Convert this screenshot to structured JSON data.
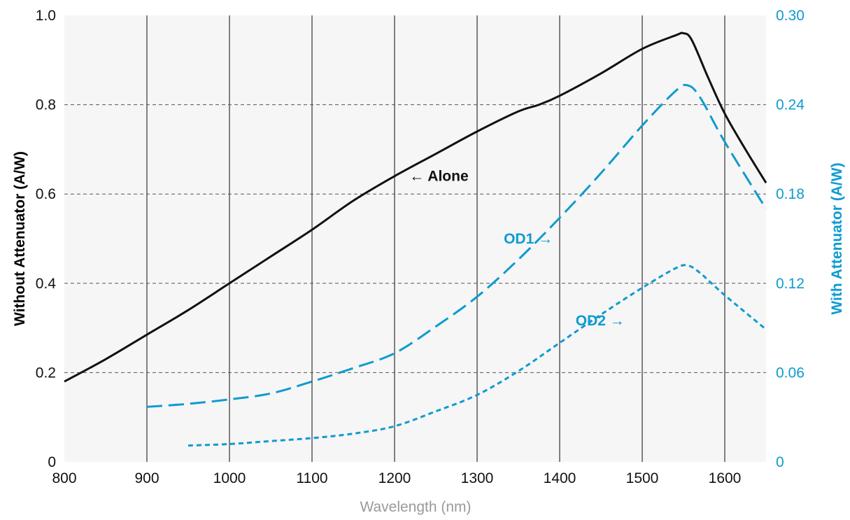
{
  "colors": {
    "primary": "#111111",
    "secondary": "#0e9bd0",
    "xlabel": "#9a9a9a",
    "plot_bg": "#f6f6f6"
  },
  "chart_data": {
    "type": "line",
    "title": "",
    "xlabel": "Wavelength (nm)",
    "ylabel_left": "Without Attenuator (A/W)",
    "ylabel_right": "With Attenuator (A/W)",
    "xlim": [
      800,
      1650
    ],
    "ylim_left": [
      0,
      1.0
    ],
    "ylim_right": [
      0,
      0.3
    ],
    "x_ticks": [
      "800",
      "900",
      "1000",
      "1100",
      "1200",
      "1300",
      "1400",
      "1500",
      "1600"
    ],
    "y_ticks_left": [
      "0",
      "0.2",
      "0.4",
      "0.6",
      "0.8",
      "1.0"
    ],
    "y_ticks_right": [
      "0",
      "0.06",
      "0.12",
      "0.18",
      "0.24",
      "0.30"
    ],
    "grid": true,
    "series": [
      {
        "name": "Alone",
        "axis": "left",
        "color": "#111111",
        "style": "solid",
        "x": [
          800,
          850,
          900,
          950,
          1000,
          1050,
          1100,
          1150,
          1200,
          1250,
          1300,
          1350,
          1375,
          1400,
          1450,
          1500,
          1540,
          1550,
          1560,
          1580,
          1600,
          1625,
          1650
        ],
        "y": [
          0.18,
          0.23,
          0.285,
          0.34,
          0.4,
          0.46,
          0.52,
          0.585,
          0.64,
          0.69,
          0.74,
          0.785,
          0.8,
          0.82,
          0.87,
          0.925,
          0.955,
          0.96,
          0.945,
          0.86,
          0.78,
          0.7,
          0.625
        ]
      },
      {
        "name": "OD1",
        "axis": "right",
        "color": "#0e9bd0",
        "style": "dashed",
        "x": [
          900,
          950,
          1000,
          1050,
          1100,
          1150,
          1200,
          1250,
          1300,
          1350,
          1400,
          1450,
          1500,
          1540,
          1555,
          1570,
          1600,
          1650
        ],
        "y": [
          0.037,
          0.039,
          0.042,
          0.046,
          0.054,
          0.063,
          0.073,
          0.091,
          0.111,
          0.136,
          0.164,
          0.194,
          0.226,
          0.249,
          0.253,
          0.245,
          0.215,
          0.17
        ]
      },
      {
        "name": "OD2",
        "axis": "right",
        "color": "#0e9bd0",
        "style": "dotted",
        "x": [
          950,
          1000,
          1050,
          1100,
          1150,
          1200,
          1250,
          1300,
          1350,
          1400,
          1450,
          1500,
          1540,
          1555,
          1570,
          1600,
          1650
        ],
        "y": [
          0.011,
          0.012,
          0.014,
          0.016,
          0.019,
          0.024,
          0.034,
          0.045,
          0.061,
          0.08,
          0.099,
          0.117,
          0.13,
          0.132,
          0.127,
          0.112,
          0.089
        ]
      }
    ],
    "annotations": [
      {
        "text": "← Alone",
        "series": "Alone",
        "x": 1218,
        "y": 0.64
      },
      {
        "text": "OD1 →",
        "series": "OD1",
        "x": 1395,
        "y": 0.15
      },
      {
        "text": "OD2 →",
        "series": "OD2",
        "x": 1482,
        "y": 0.095
      }
    ]
  }
}
